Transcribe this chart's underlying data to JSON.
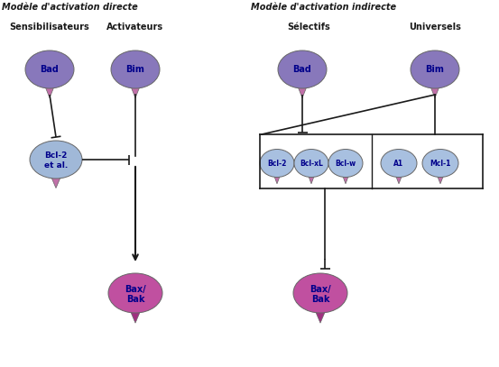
{
  "title_left": "Modèle d'activation directe",
  "title_right": "Modèle d'activation indirecte",
  "subtitle_left1": "Sensibilisateurs",
  "subtitle_left2": "Activateurs",
  "subtitle_right1": "Sélectifs",
  "subtitle_right2": "Universels",
  "bg_color": "#ffffff",
  "purple": "#8878BB",
  "pink_stem": "#C070A8",
  "blue_node": "#A0B8D8",
  "pink_bax": "#C050A0",
  "light_blue": "#A8C0E0",
  "line_color": "#1a1a1a",
  "text_color": "#00008B",
  "title_color": "#1a1a1a"
}
